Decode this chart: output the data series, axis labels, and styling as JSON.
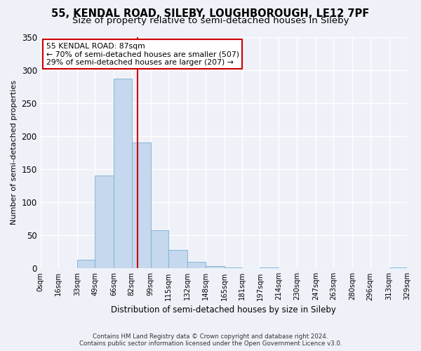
{
  "title": "55, KENDAL ROAD, SILEBY, LOUGHBOROUGH, LE12 7PF",
  "subtitle": "Size of property relative to semi-detached houses in Sileby",
  "xlabel": "Distribution of semi-detached houses by size in Sileby",
  "ylabel": "Number of semi-detached properties",
  "bin_edges": [
    0,
    16,
    33,
    49,
    66,
    82,
    99,
    115,
    132,
    148,
    165,
    181,
    197,
    214,
    230,
    247,
    263,
    280,
    296,
    313,
    329
  ],
  "bin_counts": [
    0,
    0,
    13,
    140,
    287,
    190,
    58,
    28,
    10,
    4,
    1,
    0,
    1,
    0,
    0,
    0,
    0,
    0,
    0,
    1
  ],
  "tick_labels": [
    "0sqm",
    "16sqm",
    "33sqm",
    "49sqm",
    "66sqm",
    "82sqm",
    "99sqm",
    "115sqm",
    "132sqm",
    "148sqm",
    "165sqm",
    "181sqm",
    "197sqm",
    "214sqm",
    "230sqm",
    "247sqm",
    "263sqm",
    "280sqm",
    "296sqm",
    "313sqm",
    "329sqm"
  ],
  "bar_color": "#c5d8ed",
  "bar_edge_color": "#7aafd4",
  "vline_x": 87,
  "vline_color": "#cc0000",
  "annotation_title": "55 KENDAL ROAD: 87sqm",
  "annotation_line1": "← 70% of semi-detached houses are smaller (507)",
  "annotation_line2": "29% of semi-detached houses are larger (207) →",
  "annotation_box_color": "#ffffff",
  "annotation_box_edge": "#cc0000",
  "ylim": [
    0,
    350
  ],
  "yticks": [
    0,
    50,
    100,
    150,
    200,
    250,
    300,
    350
  ],
  "footer1": "Contains HM Land Registry data © Crown copyright and database right 2024.",
  "footer2": "Contains public sector information licensed under the Open Government Licence v3.0.",
  "bg_color": "#eef2f8",
  "title_fontsize": 10.5,
  "subtitle_fontsize": 9.5
}
